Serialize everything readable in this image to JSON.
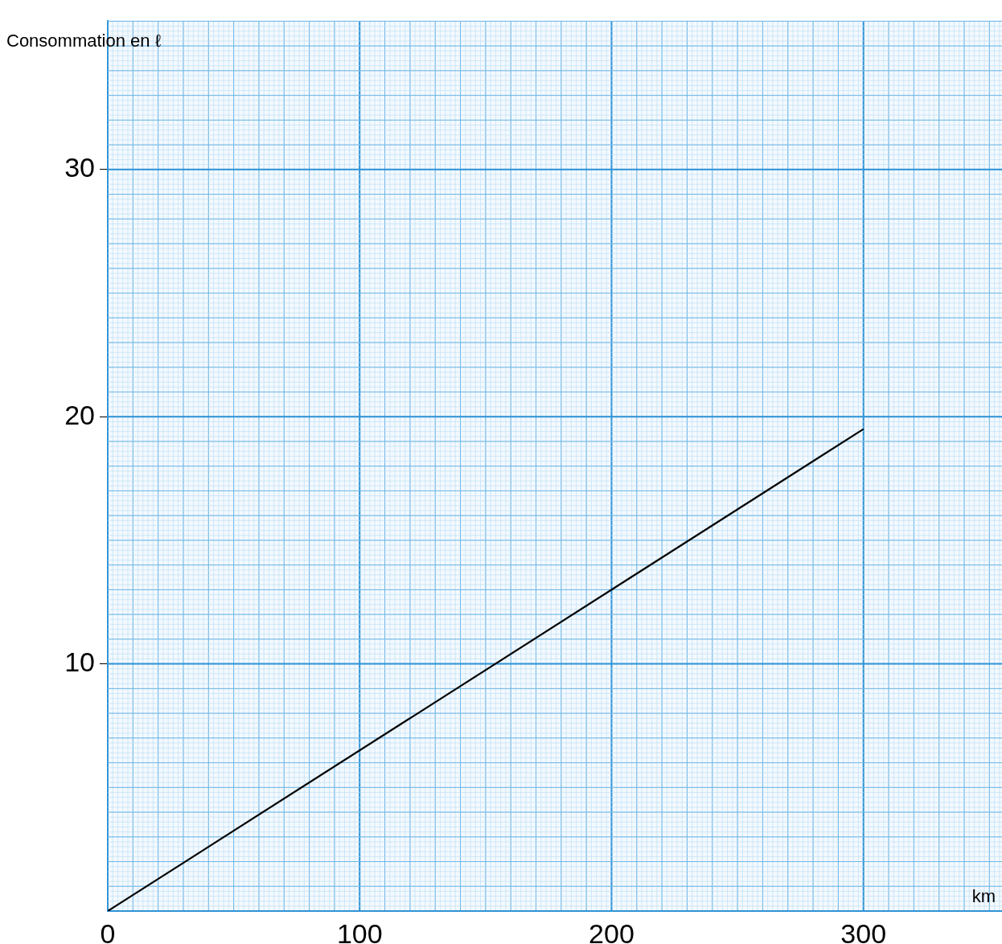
{
  "chart_data": {
    "type": "line",
    "xlabel": "km",
    "ylabel": "Consommation en ℓ",
    "x": [
      0,
      300
    ],
    "series": [
      {
        "color": "#000000",
        "values": [
          0,
          19.5
        ]
      }
    ],
    "xlim": [
      0,
      355
    ],
    "xticks": [
      0,
      100,
      200,
      300
    ],
    "ylim": [
      0,
      36
    ],
    "yticks": [
      10,
      20,
      30
    ],
    "grid": true,
    "legend": false,
    "marker": "none",
    "line_style": "solid"
  }
}
